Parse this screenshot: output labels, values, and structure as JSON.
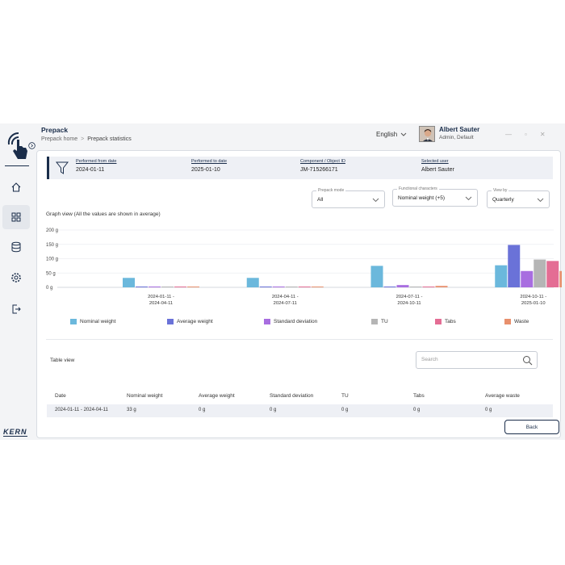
{
  "header": {
    "title": "Prepack",
    "breadcrumb": [
      "Prepack home",
      "Prepack statistics"
    ],
    "language": "English",
    "user_name": "Albert Sauter",
    "user_role": "Admin, Default"
  },
  "sidebar": {
    "brand": "KERN",
    "items": [
      {
        "icon": "home-icon"
      },
      {
        "icon": "dashboard-grid-icon"
      },
      {
        "icon": "database-icon"
      },
      {
        "icon": "settings-gear-icon"
      },
      {
        "icon": "logout-icon"
      }
    ]
  },
  "info_bar": {
    "performed_from_label": "Performed from date",
    "performed_from": "2024-01-11",
    "performed_to_label": "Performed to date",
    "performed_to": "2025-01-10",
    "component_label": "Component / Object ID",
    "component": "JM-715266171",
    "user_label": "Selected user",
    "user": "Albert Sauter"
  },
  "filters": {
    "prepack_mode_label": "Prepack mode",
    "prepack_mode": "All",
    "functional_label": "Functional characters",
    "functional": "Nominal weight (+5)",
    "view_by_label": "View by",
    "view_by": "Quarterly"
  },
  "graph_title": "Graph view (All the values are shown in average)",
  "chart_data": {
    "type": "bar",
    "categories": [
      [
        "2024-01-11 -",
        "2024-04-11"
      ],
      [
        "2024-04-11 -",
        "2024-07-11"
      ],
      [
        "2024-07-11 -",
        "2024-10-11"
      ],
      [
        "2024-10-11 -",
        "2025-01-10"
      ]
    ],
    "y_ticks": [
      "200 g",
      "150 g",
      "100 g",
      "50 g",
      "0 g"
    ],
    "ylim": [
      0,
      200
    ],
    "grid": true,
    "legend_position": "bottom",
    "series": [
      {
        "name": "Nominal weight",
        "color": "#6bb8dc",
        "values": [
          33,
          33,
          75,
          77
        ]
      },
      {
        "name": "Average weight",
        "color": "#6a72d8",
        "values": [
          0,
          0,
          0,
          148
        ]
      },
      {
        "name": "Standard deviation",
        "color": "#a86ee0",
        "values": [
          0,
          0,
          8,
          57
        ]
      },
      {
        "name": "TU",
        "color": "#b5b5b5",
        "values": [
          0,
          0,
          0,
          97
        ]
      },
      {
        "name": "Tabs",
        "color": "#e46d94",
        "values": [
          0,
          0,
          0,
          92
        ]
      },
      {
        "name": "Waste",
        "color": "#e8906d",
        "values": [
          0,
          0,
          5,
          57
        ]
      }
    ]
  },
  "table": {
    "title": "Table view",
    "search_placeholder": "Search",
    "columns": [
      "Date",
      "Nominal weight",
      "Average weight",
      "Standard deviation",
      "TU",
      "Tabs",
      "Average waste"
    ],
    "rows": [
      [
        "2024-01-11 - 2024-04-11",
        "33 g",
        "0 g",
        "0 g",
        "0 g",
        "0 g",
        "0 g"
      ]
    ]
  },
  "back_label": "Back"
}
